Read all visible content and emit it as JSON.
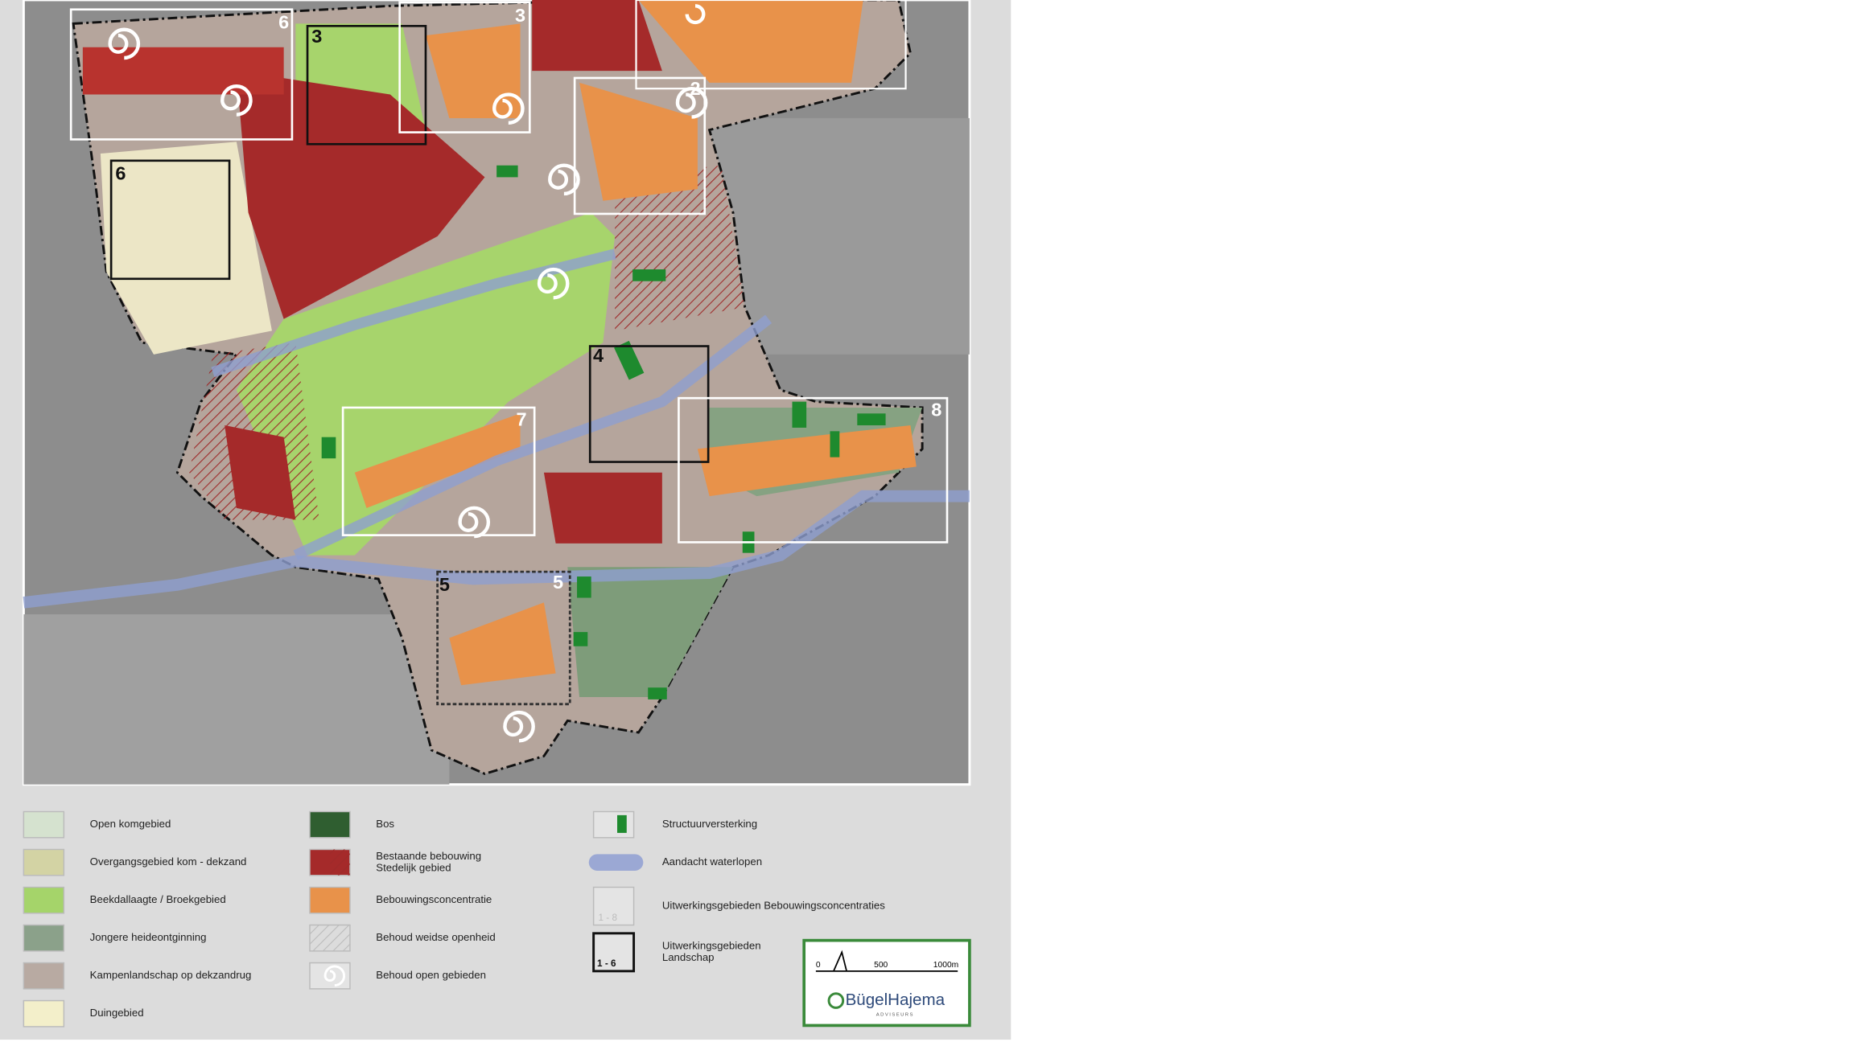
{
  "map_labels": [
    "6",
    "3",
    "3",
    "2",
    "6",
    "4",
    "7",
    "8",
    "5",
    "5"
  ],
  "legend": [
    [
      "Open komgebied"
    ],
    [
      "Overgangsgebied kom - dekzand"
    ],
    [
      "Beekdallaagte / Broekgebied"
    ],
    [
      "Jongere heideontginning"
    ],
    [
      "Kampenlandschap op dekzandrug"
    ],
    [
      "Duingebied"
    ],
    [
      "Bos"
    ],
    [
      "Bestaande bebouwing",
      "Stedelijk gebied"
    ],
    [
      "Bebouwingsconcentratie"
    ],
    [
      "Behoud weidse openheid"
    ],
    [
      "Behoud open gebieden"
    ],
    [
      "Structuurversterking"
    ],
    [
      "Aandacht waterlopen"
    ],
    [
      "Uitwerkingsgebieden Bebouwingsconcentraties"
    ],
    [
      "Uitwerkingsgebieden",
      "Landschap"
    ]
  ],
  "legend_icon_texts": [
    "1 - 8",
    "1 - 6"
  ],
  "scale": [
    "0",
    "500",
    "1000m"
  ],
  "logo": {
    "name": "BügelHajema",
    "tagline": "ADVISEURS"
  }
}
